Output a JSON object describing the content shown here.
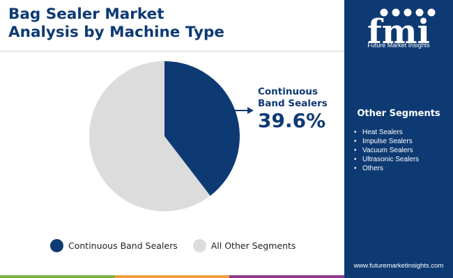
{
  "header": {
    "title_line1": "Bag Sealer Market",
    "title_line2": "Analysis by Machine Type"
  },
  "chart_data": {
    "type": "pie",
    "categories": [
      "Continuous Band Sealers",
      "All Other Segments"
    ],
    "values": [
      39.6,
      60.4
    ],
    "colors": [
      "#0e3a73",
      "#dcdcdc"
    ],
    "callout": {
      "category_line1": "Continuous",
      "category_line2": "Band Sealers",
      "value_text": "39.6%"
    },
    "legend_placement": "bottom"
  },
  "legend": {
    "items": [
      {
        "label": "Continuous Band Sealers",
        "color": "#0e3a73"
      },
      {
        "label": "All Other Segments",
        "color": "#dcdcdc"
      }
    ]
  },
  "sidebar": {
    "logo_mark": "fmi",
    "logo_text": "Future Market Insights",
    "other_segments_title": "Other Segments",
    "other_segments": [
      "Heat Sealers",
      "Impulse Sealers",
      "Vacuum Sealers",
      "Ultrasonic Sealers",
      "Others"
    ],
    "website": "www.futuremarketinsights.com"
  },
  "colors": {
    "brand_navy": "#0e3a73",
    "gray_slice": "#dcdcdc",
    "bar_green": "#7cb342",
    "bar_orange": "#f39c3d",
    "bar_purple": "#8e3a8c"
  }
}
